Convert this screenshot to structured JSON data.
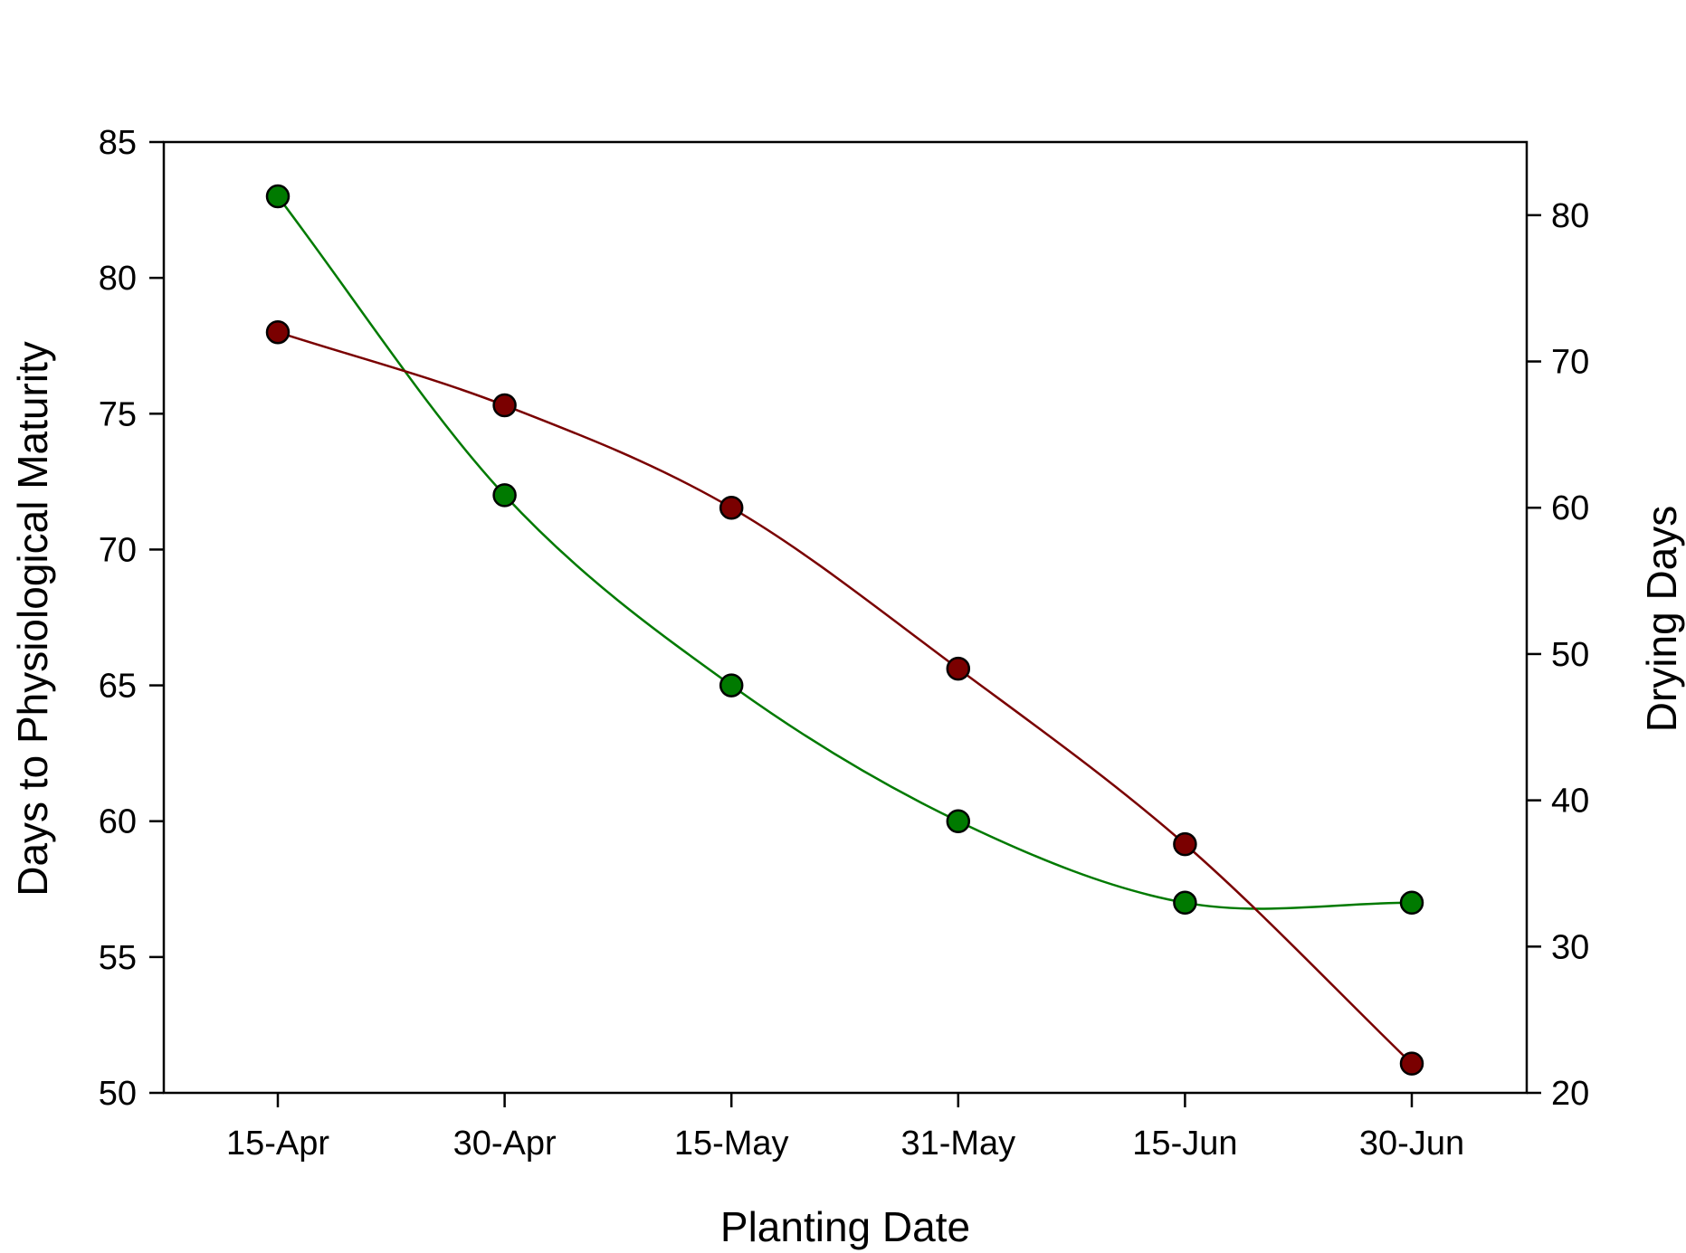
{
  "chart_data": {
    "type": "line",
    "title": "",
    "xlabel": "Planting Date",
    "ylabel": "Days to Physiological Maturity",
    "y2label": "Drying Days",
    "categories": [
      "15-Apr",
      "30-Apr",
      "15-May",
      "31-May",
      "15-Jun",
      "30-Jun"
    ],
    "ylim": [
      50,
      85
    ],
    "y_ticks": [
      50,
      55,
      60,
      65,
      70,
      75,
      80,
      85
    ],
    "y2lim": [
      20,
      85
    ],
    "y2_ticks": [
      20,
      30,
      40,
      50,
      60,
      70,
      80
    ],
    "grid": false,
    "legend": "none",
    "series": [
      {
        "axis": "left",
        "color": "#007a00",
        "values": [
          83,
          72,
          65,
          60,
          57,
          57
        ]
      },
      {
        "axis": "right",
        "color": "#7a0000",
        "values": [
          72,
          67,
          60,
          49,
          37,
          22
        ]
      }
    ]
  }
}
